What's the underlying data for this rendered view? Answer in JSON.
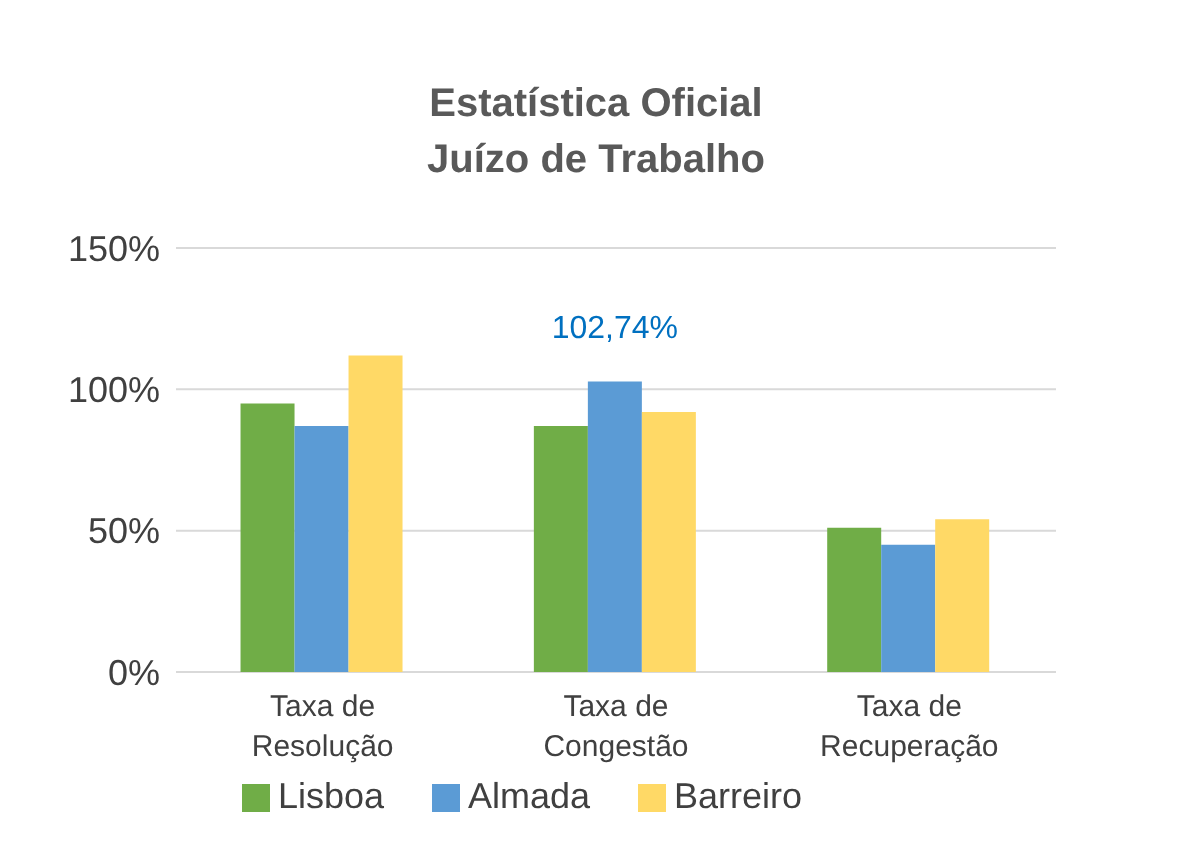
{
  "chart_data": {
    "type": "bar",
    "title": "Estatística Oficial\nJuízo de Trabalho",
    "categories": [
      "Taxa de Resolução",
      "Taxa de Congestão",
      "Taxa de Recuperação"
    ],
    "series": [
      {
        "name": "Lisboa",
        "color": "#70ad47",
        "values": [
          95,
          87,
          51
        ]
      },
      {
        "name": "Almada",
        "color": "#5b9bd5",
        "values": [
          87,
          102.74,
          45
        ],
        "value_labels": [
          null,
          "102,74%",
          null
        ]
      },
      {
        "name": "Barreiro",
        "color": "#ffd966",
        "values": [
          112,
          92,
          54
        ]
      }
    ],
    "ylim": [
      0,
      150
    ],
    "yticks": [
      {
        "value": 0,
        "label": "0%"
      },
      {
        "value": 50,
        "label": "50%"
      },
      {
        "value": 100,
        "label": "100%"
      },
      {
        "value": 150,
        "label": "150%"
      }
    ],
    "grid": "y",
    "legend": "bottom"
  }
}
